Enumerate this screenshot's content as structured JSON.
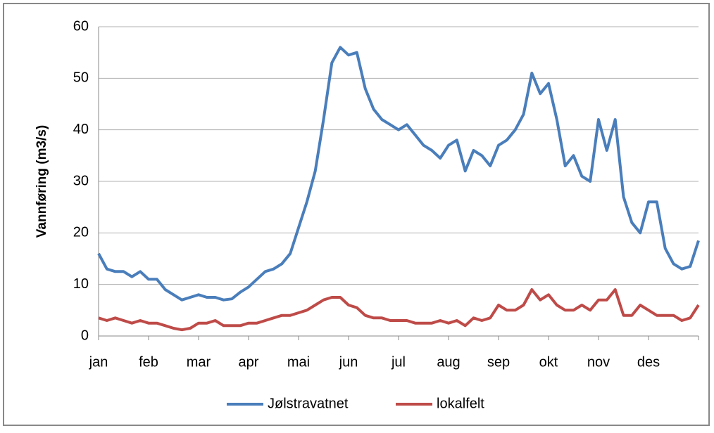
{
  "chart_data": {
    "type": "line",
    "y_label": "Vannføring (m3/s)",
    "categories": [
      "jan",
      null,
      null,
      null,
      null,
      null,
      "feb",
      null,
      null,
      null,
      null,
      null,
      "mar",
      null,
      null,
      null,
      null,
      null,
      "apr",
      null,
      null,
      null,
      null,
      null,
      "mai",
      null,
      null,
      null,
      null,
      null,
      "jun",
      null,
      null,
      null,
      null,
      null,
      "jul",
      null,
      null,
      null,
      null,
      null,
      "aug",
      null,
      null,
      null,
      null,
      null,
      "sep",
      null,
      null,
      null,
      null,
      null,
      "okt",
      null,
      null,
      null,
      null,
      null,
      "nov",
      null,
      null,
      null,
      null,
      null,
      "des",
      null,
      null,
      null,
      null,
      null,
      null
    ],
    "series": [
      {
        "name": "Jølstravatnet",
        "color": "#4a7ebb",
        "values": [
          16,
          13,
          12.5,
          12.5,
          11.5,
          12.5,
          11,
          11,
          9,
          8,
          7,
          7.5,
          8,
          7.5,
          7.5,
          7,
          7.2,
          8.5,
          9.5,
          11,
          12.5,
          13,
          14,
          16,
          21,
          26,
          32,
          42,
          53,
          56,
          54.5,
          55,
          48,
          44,
          42,
          41,
          40,
          41,
          39,
          37,
          36,
          34.5,
          37,
          38,
          32,
          36,
          35,
          33,
          37,
          38,
          40,
          43,
          51,
          47,
          49,
          42,
          33,
          35,
          31,
          30,
          42,
          36,
          42,
          27,
          22,
          20,
          26,
          26,
          17,
          14,
          13,
          13.5,
          18.5
        ]
      },
      {
        "name": "lokalfelt",
        "color": "#be4b48",
        "values": [
          3.5,
          3,
          3.5,
          3,
          2.5,
          3,
          2.5,
          2.5,
          2,
          1.5,
          1.2,
          1.5,
          2.5,
          2.5,
          3,
          2,
          2,
          2,
          2.5,
          2.5,
          3,
          3.5,
          4,
          4,
          4.5,
          5,
          6,
          7,
          7.5,
          7.5,
          6,
          5.5,
          4,
          3.5,
          3.5,
          3,
          3,
          3,
          2.5,
          2.5,
          2.5,
          3,
          2.5,
          3,
          2,
          3.5,
          3,
          3.5,
          6,
          5,
          5,
          6,
          9,
          7,
          8,
          6,
          5,
          5,
          6,
          5,
          7,
          7,
          9,
          4,
          4,
          6,
          5,
          4,
          4,
          4,
          3,
          3.5,
          6
        ]
      }
    ],
    "ylim": [
      0,
      60
    ],
    "yticks": [
      0,
      10,
      20,
      30,
      40,
      50,
      60
    ],
    "grid": true,
    "legend": "bottom"
  }
}
